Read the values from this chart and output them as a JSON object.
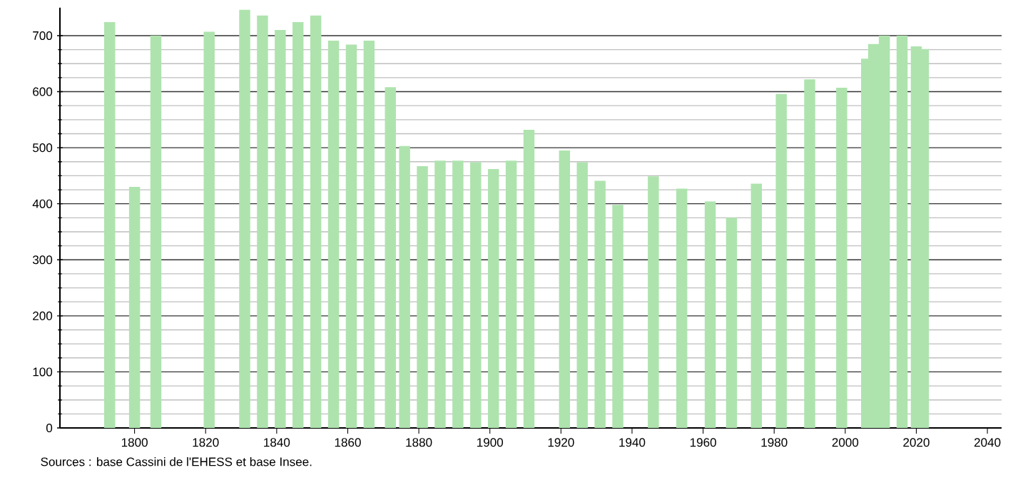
{
  "chart_data": {
    "type": "bar",
    "color": "#aee3ae",
    "x": [
      1793,
      1800,
      1806,
      1821,
      1831,
      1836,
      1841,
      1846,
      1851,
      1856,
      1861,
      1866,
      1872,
      1876,
      1881,
      1886,
      1891,
      1896,
      1901,
      1906,
      1911,
      1921,
      1926,
      1931,
      1936,
      1946,
      1954,
      1962,
      1968,
      1975,
      1982,
      1990,
      1999,
      2006,
      2008,
      2011,
      2016,
      2020,
      2022
    ],
    "values": [
      724,
      430,
      700,
      707,
      746,
      736,
      710,
      724,
      736,
      691,
      684,
      691,
      608,
      503,
      467,
      477,
      477,
      474,
      462,
      477,
      532,
      495,
      474,
      441,
      398,
      449,
      427,
      404,
      375,
      436,
      596,
      622,
      607,
      659,
      685,
      700,
      700,
      681,
      676
    ],
    "xlim": [
      1779,
      2044
    ],
    "ylim": [
      0,
      750
    ],
    "xticks": [
      1800,
      1820,
      1840,
      1860,
      1880,
      1900,
      1920,
      1940,
      1960,
      1980,
      2000,
      2020,
      2040
    ],
    "yticks": [
      0,
      100,
      200,
      300,
      400,
      500,
      600,
      700
    ],
    "grid": "y",
    "annotations": [
      "Sources : base Cassini de l'EHESS et base Insee."
    ]
  }
}
